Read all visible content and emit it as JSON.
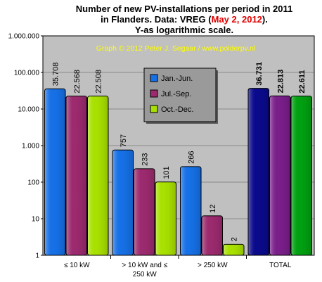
{
  "chart_data": {
    "type": "bar",
    "title_lines": [
      "Number of new PV-installations per period in 2011",
      "in Flanders. Data: VREG (",
      "May 2, 2012",
      ").",
      "Y-as logarithmic  scale."
    ],
    "credit": "Graph © 2012 Peter J. Segaar / www.polderpv.nl",
    "y_scale": "log",
    "ylim": [
      1,
      1000000
    ],
    "y_ticks": [
      1,
      10,
      100,
      1000,
      10000,
      100000,
      1000000
    ],
    "y_tick_labels": [
      "1",
      "10",
      "100",
      "1.000",
      "10.000",
      "100.000",
      "1.000.000"
    ],
    "categories": [
      "≤ 10 kW",
      "> 10 kW and ≤ 250 kW",
      "> 250 kW",
      "TOTAL"
    ],
    "category_label_lines": [
      [
        "≤ 10 kW"
      ],
      [
        "> 10 kW and ≤",
        "250 kW"
      ],
      [
        "> 250 kW"
      ],
      [
        "TOTAL"
      ]
    ],
    "series": [
      {
        "name": "Jan.-Jun.",
        "values": [
          35708,
          757,
          266,
          36731
        ],
        "labels": [
          "35.708",
          "757",
          "266",
          "36.731"
        ],
        "colors": [
          "#1670e6",
          "#1670e6",
          "#1670e6",
          "#0a0a8c"
        ]
      },
      {
        "name": "Jul.-Sep.",
        "values": [
          22568,
          233,
          12,
          22813
        ],
        "labels": [
          "22.568",
          "233",
          "12",
          "22.813"
        ],
        "colors": [
          "#9c2a6e",
          "#9c2a6e",
          "#9c2a6e",
          "#7a1e8a"
        ]
      },
      {
        "name": "Oct.-Dec.",
        "values": [
          22508,
          101,
          2,
          22611
        ],
        "labels": [
          "22.508",
          "101",
          "2",
          "22.611"
        ],
        "colors": [
          "#a8e000",
          "#a8e000",
          "#a8e000",
          "#00a010"
        ]
      }
    ],
    "legend_colors": [
      "#1670e6",
      "#9c2a6e",
      "#a8e000"
    ],
    "legend_position": "top-center",
    "plot_background": "#c0c0c0",
    "grid": true
  }
}
